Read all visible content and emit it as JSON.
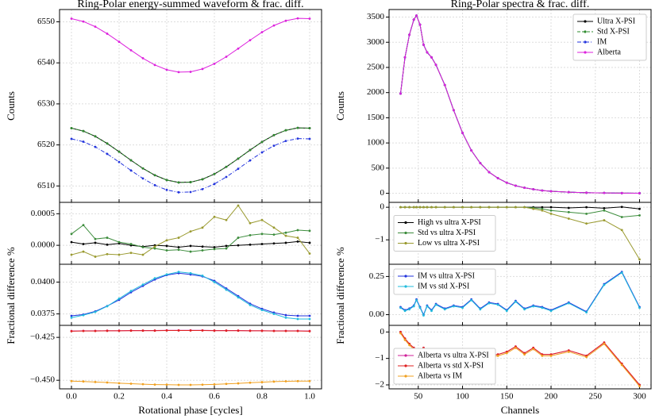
{
  "chart_data": [
    {
      "type": "line",
      "title": "Ring-Polar energy-summed waveform & frac. diff.",
      "ylabel": "Counts",
      "x": [
        0,
        0.05,
        0.1,
        0.15,
        0.2,
        0.25,
        0.3,
        0.35,
        0.4,
        0.45,
        0.5,
        0.55,
        0.6,
        0.65,
        0.7,
        0.75,
        0.8,
        0.85,
        0.9,
        0.95,
        1
      ],
      "xlim": [
        -0.05,
        1.05
      ],
      "ylim": [
        6506,
        6553
      ],
      "yticks": [
        6510,
        6520,
        6530,
        6540,
        6550
      ],
      "grid": true,
      "series": [
        {
          "color": "#000000",
          "values": [
            6524.08,
            6523.37,
            6522.09,
            6520.35,
            6518.34,
            6516.25,
            6514.27,
            6512.62,
            6511.44,
            6510.85,
            6510.92,
            6511.63,
            6512.91,
            6514.65,
            6516.66,
            6518.75,
            6520.73,
            6522.38,
            6523.56,
            6524.15,
            6524.08
          ]
        },
        {
          "color": "#2e8b2e",
          "linestyle": "dashed",
          "values": [
            6524.08,
            6523.37,
            6522.09,
            6520.35,
            6518.34,
            6516.25,
            6514.27,
            6512.62,
            6511.44,
            6510.85,
            6510.92,
            6511.63,
            6512.91,
            6514.65,
            6516.66,
            6518.75,
            6520.73,
            6522.38,
            6523.56,
            6524.15,
            6524.08
          ]
        },
        {
          "color": "#2233dd",
          "linestyle": "dashdot",
          "values": [
            6521.48,
            6520.78,
            6519.52,
            6517.81,
            6515.83,
            6513.77,
            6511.82,
            6510.19,
            6509.03,
            6508.45,
            6508.52,
            6509.22,
            6510.48,
            6512.19,
            6514.18,
            6516.23,
            6518.18,
            6519.81,
            6520.97,
            6521.55,
            6521.48
          ]
        },
        {
          "color": "#dd22dd",
          "values": [
            6550.78,
            6550.08,
            6548.82,
            6547.11,
            6545.13,
            6543.07,
            6541.12,
            6539.49,
            6538.33,
            6537.75,
            6537.82,
            6538.52,
            6539.78,
            6541.49,
            6543.48,
            6545.53,
            6547.48,
            6549.11,
            6550.27,
            6550.85,
            6550.78
          ]
        }
      ]
    },
    {
      "type": "line",
      "x": [
        0,
        0.05,
        0.1,
        0.15,
        0.2,
        0.25,
        0.3,
        0.35,
        0.4,
        0.45,
        0.5,
        0.55,
        0.6,
        0.65,
        0.7,
        0.75,
        0.8,
        0.85,
        0.9,
        0.95,
        1
      ],
      "xlim": [
        -0.05,
        1.05
      ],
      "ylim": [
        -0.0003,
        0.00068
      ],
      "yticks": [
        {
          "value": 0,
          "label": "0.0000"
        },
        {
          "value": 0.0005,
          "label": "0.0005"
        }
      ],
      "grid": true,
      "series": [
        {
          "color": "#000000",
          "values": [
            5e-05,
            2e-05,
            4e-05,
            1e-05,
            3e-05,
            0,
            -2e-05,
            0,
            -1e-05,
            -3e-05,
            -1e-05,
            -2e-05,
            -3e-05,
            -1e-05,
            0,
            1e-05,
            2e-05,
            3e-05,
            4e-05,
            6e-05,
            4e-05
          ]
        },
        {
          "color": "#3c8c3c",
          "values": [
            0.00018,
            0.00032,
            0.0001,
            0.00012,
            5e-05,
            2e-05,
            -3e-05,
            -5e-05,
            -8e-05,
            -7e-05,
            -0.0001,
            -8e-05,
            -6e-05,
            -5e-05,
            0.00012,
            0.00016,
            0.00018,
            0.00017,
            0.0002,
            0.00024,
            0.00023
          ]
        },
        {
          "color": "#9a9a30",
          "values": [
            -0.00015,
            -0.0001,
            -0.00018,
            -0.00014,
            -0.00015,
            -0.00012,
            -0.00015,
            -2e-05,
            8e-05,
            0.00012,
            0.00022,
            0.00028,
            0.00045,
            0.0004,
            0.00063,
            0.00035,
            0.0004,
            0.00028,
            0.00015,
            0.00012,
            -0.00013
          ]
        }
      ]
    },
    {
      "type": "line",
      "ylabel": "Fractional difference %",
      "x": [
        0,
        0.05,
        0.1,
        0.15,
        0.2,
        0.25,
        0.3,
        0.35,
        0.4,
        0.45,
        0.5,
        0.55,
        0.6,
        0.65,
        0.7,
        0.75,
        0.8,
        0.85,
        0.9,
        0.95,
        1
      ],
      "xlim": [
        -0.05,
        1.05
      ],
      "ylim": [
        0.0366,
        0.0414
      ],
      "yticks": [
        {
          "value": 0.0375,
          "label": "0.0375"
        },
        {
          "value": 0.04,
          "label": "0.0400"
        }
      ],
      "grid": true,
      "series": [
        {
          "color": "#2233dd",
          "values": [
            0.03735,
            0.03745,
            0.0377,
            0.03812,
            0.0386,
            0.0392,
            0.0397,
            0.0402,
            0.04055,
            0.0407,
            0.0406,
            0.04045,
            0.0401,
            0.0395,
            0.0389,
            0.0383,
            0.0379,
            0.0376,
            0.0374,
            0.03735,
            0.03735
          ]
        },
        {
          "color": "#22bbdd",
          "values": [
            0.0372,
            0.0374,
            0.03765,
            0.0381,
            0.0387,
            0.0393,
            0.0398,
            0.0403,
            0.0406,
            0.0408,
            0.0407,
            0.0405,
            0.04,
            0.0394,
            0.0388,
            0.0382,
            0.0378,
            0.0375,
            0.0372,
            0.0371,
            0.0371
          ]
        }
      ]
    },
    {
      "type": "line",
      "xlabel": "Rotational phase [cycles]",
      "x": [
        0,
        0.05,
        0.1,
        0.15,
        0.2,
        0.25,
        0.3,
        0.35,
        0.4,
        0.45,
        0.5,
        0.55,
        0.6,
        0.65,
        0.7,
        0.75,
        0.8,
        0.85,
        0.9,
        0.95,
        1
      ],
      "xlim": [
        -0.05,
        1.05
      ],
      "xticks": [
        {
          "value": 0,
          "label": "0.0"
        },
        0.2,
        0.4,
        0.6,
        0.8,
        {
          "value": 1,
          "label": "1.0"
        }
      ],
      "ylim": [
        -0.455,
        -0.418
      ],
      "yticks": [
        {
          "value": -0.425,
          "label": "−0.425"
        },
        {
          "value": -0.45,
          "label": "−0.450"
        }
      ],
      "grid": true,
      "series": [
        {
          "color": "#d0209a",
          "values": [
            -0.4213,
            -0.4212,
            -0.4212,
            -0.4211,
            -0.4211,
            -0.421,
            -0.421,
            -0.421,
            -0.4209,
            -0.4209,
            -0.4209,
            -0.4209,
            -0.421,
            -0.421,
            -0.421,
            -0.4211,
            -0.4211,
            -0.4212,
            -0.4212,
            -0.4212,
            -0.4213
          ]
        },
        {
          "color": "#e02020",
          "values": [
            -0.4214,
            -0.4213,
            -0.4213,
            -0.4212,
            -0.4212,
            -0.4211,
            -0.4211,
            -0.4211,
            -0.421,
            -0.421,
            -0.421,
            -0.421,
            -0.4211,
            -0.4211,
            -0.4211,
            -0.4212,
            -0.4212,
            -0.4213,
            -0.4213,
            -0.4213,
            -0.4214
          ]
        },
        {
          "color": "#f0a020",
          "values": [
            -0.4505,
            -0.4507,
            -0.451,
            -0.4513,
            -0.4517,
            -0.452,
            -0.4523,
            -0.4525,
            -0.4526,
            -0.4527,
            -0.4527,
            -0.4526,
            -0.4524,
            -0.4521,
            -0.4518,
            -0.4514,
            -0.4511,
            -0.4508,
            -0.4506,
            -0.4505,
            -0.4505
          ]
        }
      ]
    },
    {
      "type": "line",
      "title": "Ring-Polar spectra & frac. diff.",
      "ylabel": "Counts",
      "legend": "upper right",
      "x": [
        30,
        35,
        40,
        45,
        48,
        52,
        56,
        60,
        65,
        70,
        80,
        90,
        100,
        110,
        120,
        130,
        140,
        150,
        160,
        170,
        180,
        190,
        200,
        220,
        240,
        260,
        280,
        300
      ],
      "xlim": [
        17,
        313
      ],
      "ylim": [
        -180,
        3650
      ],
      "yticks": [
        0,
        500,
        1000,
        1500,
        2000,
        2500,
        3000,
        3500
      ],
      "grid": true,
      "series": [
        {
          "name": "Ultra X-PSI",
          "color": "#000000",
          "values": [
            1980,
            2700,
            3150,
            3450,
            3530,
            3350,
            2950,
            2800,
            2700,
            2550,
            2150,
            1650,
            1200,
            850,
            600,
            420,
            300,
            210,
            150,
            110,
            80,
            55,
            40,
            22,
            12,
            7,
            4,
            2
          ]
        },
        {
          "name": "Std X-PSI",
          "color": "#2e8b2e",
          "linestyle": "dashed",
          "values": [
            1980,
            2700,
            3150,
            3450,
            3530,
            3350,
            2950,
            2800,
            2700,
            2550,
            2150,
            1650,
            1200,
            850,
            600,
            420,
            300,
            210,
            150,
            110,
            80,
            55,
            40,
            22,
            12,
            7,
            4,
            2
          ]
        },
        {
          "name": "IM",
          "color": "#2233dd",
          "linestyle": "dashdot",
          "values": [
            1980,
            2700,
            3150,
            3450,
            3530,
            3350,
            2950,
            2800,
            2700,
            2550,
            2150,
            1650,
            1200,
            850,
            600,
            420,
            300,
            210,
            150,
            110,
            80,
            55,
            40,
            22,
            12,
            7,
            4,
            2
          ]
        },
        {
          "name": "Alberta",
          "color": "#dd22dd",
          "values": [
            1980,
            2700,
            3150,
            3450,
            3530,
            3350,
            2950,
            2800,
            2700,
            2550,
            2150,
            1650,
            1200,
            850,
            600,
            420,
            300,
            210,
            150,
            110,
            80,
            55,
            40,
            22,
            12,
            7,
            4,
            2
          ]
        }
      ]
    },
    {
      "type": "line",
      "legend": "center left",
      "x": [
        30,
        35,
        40,
        45,
        48,
        52,
        56,
        60,
        65,
        70,
        80,
        90,
        100,
        110,
        120,
        130,
        140,
        150,
        160,
        170,
        180,
        190,
        200,
        220,
        240,
        260,
        280,
        300
      ],
      "xlim": [
        17,
        313
      ],
      "ylim": [
        -1.75,
        0.15
      ],
      "yticks": [
        {
          "value": -1,
          "label": "−1"
        },
        0
      ],
      "grid": true,
      "series": [
        {
          "name": "High vs ultra X-PSI",
          "color": "#000000",
          "values": [
            0,
            0,
            0,
            0,
            0,
            0,
            0,
            0,
            0,
            0,
            0,
            0,
            0,
            0,
            0,
            0,
            0,
            0,
            0,
            0,
            0,
            0,
            0,
            -0.02,
            0,
            -0.03,
            0.01,
            -0.05
          ]
        },
        {
          "name": "Std vs ultra X-PSI",
          "color": "#3c8c3c",
          "values": [
            0,
            0,
            0,
            0,
            0,
            0,
            0,
            0,
            0,
            0,
            0,
            0,
            0,
            0,
            0,
            0,
            0,
            0,
            0,
            0,
            -0.02,
            -0.05,
            -0.1,
            -0.15,
            -0.2,
            -0.1,
            -0.3,
            -0.25
          ]
        },
        {
          "name": "Low vs ultra X-PSI",
          "color": "#9a9a30",
          "values": [
            0,
            0,
            0,
            0,
            0,
            0,
            0,
            0,
            0,
            0,
            0,
            0,
            0,
            0,
            0,
            0,
            0,
            0,
            0,
            0,
            -0.05,
            -0.1,
            -0.2,
            -0.35,
            -0.5,
            -0.4,
            -0.7,
            -1.6
          ]
        }
      ]
    },
    {
      "type": "line",
      "ylabel": "Fractional difference %",
      "legend": "upper left",
      "x": [
        30,
        35,
        40,
        45,
        48,
        52,
        56,
        60,
        65,
        70,
        80,
        90,
        100,
        110,
        120,
        130,
        140,
        150,
        160,
        170,
        180,
        190,
        200,
        220,
        240,
        260,
        280,
        300
      ],
      "xlim": [
        17,
        313
      ],
      "ylim": [
        -0.07,
        0.33
      ],
      "yticks": [
        {
          "value": 0,
          "label": "0.00"
        },
        {
          "value": 0.25,
          "label": "0.25"
        }
      ],
      "grid": true,
      "series": [
        {
          "name": "IM vs ultra X-PSI",
          "color": "#2233dd",
          "values": [
            0.05,
            0.03,
            0.04,
            0.06,
            0.1,
            0.05,
            0,
            0.06,
            0.03,
            0.07,
            0.04,
            0.06,
            0.05,
            0.1,
            0.04,
            0.08,
            0.07,
            0.03,
            0.09,
            0.04,
            0.06,
            0.05,
            0.03,
            0.08,
            0.02,
            0.2,
            0.28,
            0.05
          ]
        },
        {
          "name": "IM vs std X-PSI",
          "color": "#22bbdd",
          "values": [
            0.045,
            0.025,
            0.035,
            0.055,
            0.095,
            0.045,
            -0.005,
            0.055,
            0.025,
            0.065,
            0.035,
            0.055,
            0.045,
            0.095,
            0.035,
            0.075,
            0.065,
            0.025,
            0.085,
            0.035,
            0.055,
            0.045,
            0.025,
            0.075,
            0.015,
            0.195,
            0.275,
            0.045
          ]
        }
      ]
    },
    {
      "type": "line",
      "xlabel": "Channels",
      "legend": "lower left",
      "x": [
        30,
        35,
        40,
        45,
        48,
        52,
        56,
        60,
        65,
        70,
        80,
        90,
        100,
        110,
        120,
        130,
        140,
        150,
        160,
        170,
        180,
        190,
        200,
        220,
        240,
        260,
        280,
        300
      ],
      "xlim": [
        17,
        313
      ],
      "xticks": [
        50,
        100,
        150,
        200,
        250,
        300
      ],
      "ylim": [
        -2.15,
        0.25
      ],
      "yticks": [
        {
          "value": -2,
          "label": "−2"
        },
        {
          "value": -1,
          "label": "−1"
        },
        0
      ],
      "grid": true,
      "series": [
        {
          "name": "Alberta vs ultra X-PSI",
          "color": "#d0209a",
          "values": [
            0,
            -0.25,
            -0.45,
            -0.6,
            -0.7,
            -0.75,
            -0.6,
            -0.75,
            -0.65,
            -0.8,
            -0.85,
            -0.85,
            -0.65,
            -0.85,
            -0.9,
            -0.9,
            -0.85,
            -0.75,
            -0.55,
            -0.8,
            -0.6,
            -0.85,
            -0.85,
            -0.7,
            -0.9,
            -0.4,
            -1.2,
            -2
          ]
        },
        {
          "name": "Alberta vs std X-PSI",
          "color": "#e02020",
          "values": [
            0,
            -0.25,
            -0.45,
            -0.6,
            -0.7,
            -0.75,
            -0.6,
            -0.75,
            -0.65,
            -0.8,
            -0.85,
            -0.85,
            -0.65,
            -0.85,
            -0.9,
            -0.9,
            -0.85,
            -0.75,
            -0.55,
            -0.8,
            -0.6,
            -0.85,
            -0.85,
            -0.7,
            -0.9,
            -0.4,
            -1.2,
            -2
          ]
        },
        {
          "name": "Alberta vs IM",
          "color": "#f0a020",
          "values": [
            -0.05,
            -0.3,
            -0.5,
            -0.65,
            -0.75,
            -0.8,
            -0.65,
            -0.8,
            -0.7,
            -0.85,
            -0.9,
            -0.9,
            -0.7,
            -0.9,
            -0.95,
            -0.95,
            -0.9,
            -0.8,
            -0.6,
            -0.85,
            -0.65,
            -0.9,
            -0.9,
            -0.75,
            -0.95,
            -0.45,
            -1.25,
            -2.05
          ]
        }
      ]
    }
  ]
}
